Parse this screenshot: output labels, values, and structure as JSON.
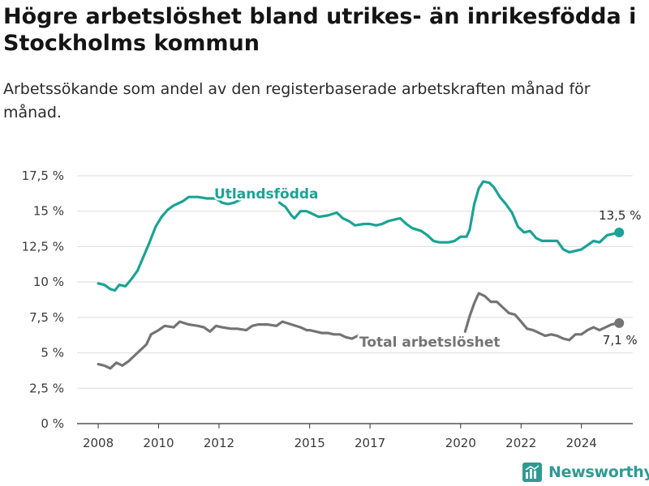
{
  "title": "Högre arbetslöshet bland utrikes- än inrikesfödda i Stockholms kommun",
  "subtitle": "Arbetssökande som andel av den registerbaserade arbetskraften månad för månad.",
  "brand": {
    "name": "Newsworthy",
    "icon": "newsworthy-logo-icon"
  },
  "colors": {
    "utlandsfodda": "#1aa396",
    "total": "#747474",
    "grid": "#dedede",
    "axis": "#333333"
  },
  "chart_data": {
    "type": "line",
    "title": "Högre arbetslöshet bland utrikes- än inrikesfödda i Stockholms kommun",
    "subtitle": "Arbetssökande som andel av den registerbaserade arbetskraften månad för månad.",
    "xlabel": "",
    "ylabel": "",
    "xlim": [
      2007.3,
      2025.7
    ],
    "ylim": [
      0,
      17.5
    ],
    "y_ticks": [
      0,
      2.5,
      5,
      7.5,
      10,
      12.5,
      15,
      17.5
    ],
    "y_tick_labels": [
      "0 %",
      "2,5 %",
      "5 %",
      "7,5 %",
      "10 %",
      "12,5 %",
      "15 %",
      "17,5 %"
    ],
    "x_ticks": [
      2008,
      2010,
      2012,
      2015,
      2017,
      2020,
      2022,
      2024
    ],
    "x_tick_labels": [
      "2008",
      "2010",
      "2012",
      "2015",
      "2017",
      "2020",
      "2022",
      "2024"
    ],
    "grid": true,
    "legend": "direct labels on lines",
    "series": [
      {
        "name": "Utlandsfödda",
        "end_label": "13,5 %",
        "segments": [
          [
            [
              2008.0,
              9.9
            ],
            [
              2008.2,
              9.8
            ],
            [
              2008.4,
              9.5
            ],
            [
              2008.55,
              9.4
            ],
            [
              2008.7,
              9.8
            ],
            [
              2008.9,
              9.7
            ],
            [
              2009.1,
              10.2
            ],
            [
              2009.3,
              10.8
            ],
            [
              2009.5,
              11.8
            ],
            [
              2009.7,
              12.8
            ],
            [
              2009.9,
              13.9
            ],
            [
              2010.1,
              14.6
            ],
            [
              2010.3,
              15.1
            ],
            [
              2010.5,
              15.4
            ],
            [
              2010.8,
              15.7
            ],
            [
              2011.0,
              16.0
            ],
            [
              2011.3,
              16.0
            ],
            [
              2011.6,
              15.9
            ],
            [
              2011.9,
              15.9
            ],
            [
              2012.1,
              15.6
            ],
            [
              2012.3,
              15.5
            ],
            [
              2012.5,
              15.6
            ],
            [
              2012.7,
              15.8
            ]
          ],
          [
            [
              2014.0,
              15.6
            ],
            [
              2014.2,
              15.3
            ],
            [
              2014.4,
              14.7
            ],
            [
              2014.5,
              14.5
            ],
            [
              2014.7,
              15.0
            ],
            [
              2014.9,
              15.0
            ],
            [
              2015.1,
              14.8
            ],
            [
              2015.3,
              14.6
            ],
            [
              2015.6,
              14.7
            ],
            [
              2015.9,
              14.9
            ],
            [
              2016.1,
              14.5
            ],
            [
              2016.3,
              14.3
            ],
            [
              2016.5,
              14.0
            ],
            [
              2016.8,
              14.1
            ],
            [
              2017.0,
              14.1
            ],
            [
              2017.2,
              14.0
            ],
            [
              2017.4,
              14.1
            ],
            [
              2017.6,
              14.3
            ],
            [
              2017.8,
              14.4
            ],
            [
              2018.0,
              14.5
            ],
            [
              2018.2,
              14.1
            ],
            [
              2018.4,
              13.8
            ],
            [
              2018.7,
              13.6
            ],
            [
              2018.9,
              13.3
            ],
            [
              2019.1,
              12.9
            ],
            [
              2019.3,
              12.8
            ],
            [
              2019.6,
              12.8
            ],
            [
              2019.8,
              12.9
            ],
            [
              2020.0,
              13.2
            ],
            [
              2020.2,
              13.2
            ],
            [
              2020.3,
              13.7
            ],
            [
              2020.45,
              15.5
            ],
            [
              2020.6,
              16.6
            ],
            [
              2020.75,
              17.1
            ],
            [
              2020.95,
              17.0
            ],
            [
              2021.1,
              16.7
            ],
            [
              2021.3,
              16.0
            ],
            [
              2021.5,
              15.5
            ],
            [
              2021.7,
              14.9
            ],
            [
              2021.9,
              13.9
            ],
            [
              2022.1,
              13.5
            ],
            [
              2022.3,
              13.6
            ],
            [
              2022.5,
              13.1
            ],
            [
              2022.7,
              12.9
            ],
            [
              2022.9,
              12.9
            ],
            [
              2023.2,
              12.9
            ],
            [
              2023.4,
              12.3
            ],
            [
              2023.6,
              12.1
            ],
            [
              2023.8,
              12.2
            ],
            [
              2024.0,
              12.3
            ],
            [
              2024.2,
              12.6
            ],
            [
              2024.4,
              12.9
            ],
            [
              2024.6,
              12.8
            ],
            [
              2024.85,
              13.3
            ],
            [
              2025.05,
              13.4
            ],
            [
              2025.25,
              13.5
            ]
          ]
        ]
      },
      {
        "name": "Total arbetslöshet",
        "end_label": "7,1 %",
        "segments": [
          [
            [
              2008.0,
              4.2
            ],
            [
              2008.2,
              4.1
            ],
            [
              2008.4,
              3.9
            ],
            [
              2008.6,
              4.3
            ],
            [
              2008.8,
              4.1
            ],
            [
              2009.0,
              4.4
            ],
            [
              2009.2,
              4.8
            ],
            [
              2009.4,
              5.2
            ],
            [
              2009.6,
              5.6
            ],
            [
              2009.75,
              6.3
            ],
            [
              2010.0,
              6.6
            ],
            [
              2010.2,
              6.9
            ],
            [
              2010.5,
              6.8
            ],
            [
              2010.7,
              7.2
            ],
            [
              2011.0,
              7.0
            ],
            [
              2011.3,
              6.9
            ],
            [
              2011.5,
              6.8
            ],
            [
              2011.7,
              6.5
            ],
            [
              2011.9,
              6.9
            ],
            [
              2012.1,
              6.8
            ],
            [
              2012.4,
              6.7
            ],
            [
              2012.6,
              6.7
            ],
            [
              2012.9,
              6.6
            ],
            [
              2013.1,
              6.9
            ],
            [
              2013.3,
              7.0
            ],
            [
              2013.6,
              7.0
            ],
            [
              2013.9,
              6.9
            ],
            [
              2014.1,
              7.2
            ],
            [
              2014.4,
              7.0
            ],
            [
              2014.7,
              6.8
            ],
            [
              2014.9,
              6.6
            ],
            [
              2015.0,
              6.6
            ],
            [
              2015.2,
              6.5
            ],
            [
              2015.4,
              6.4
            ],
            [
              2015.6,
              6.4
            ],
            [
              2015.8,
              6.3
            ],
            [
              2016.0,
              6.3
            ],
            [
              2016.2,
              6.1
            ],
            [
              2016.4,
              6.0
            ],
            [
              2016.6,
              6.2
            ]
          ],
          [
            [
              2020.15,
              6.5
            ],
            [
              2020.3,
              7.6
            ],
            [
              2020.45,
              8.5
            ],
            [
              2020.6,
              9.2
            ],
            [
              2020.8,
              9.0
            ],
            [
              2021.0,
              8.6
            ],
            [
              2021.2,
              8.6
            ],
            [
              2021.4,
              8.2
            ],
            [
              2021.6,
              7.8
            ],
            [
              2021.8,
              7.7
            ],
            [
              2022.0,
              7.2
            ],
            [
              2022.2,
              6.7
            ],
            [
              2022.4,
              6.6
            ],
            [
              2022.6,
              6.4
            ],
            [
              2022.8,
              6.2
            ],
            [
              2023.0,
              6.3
            ],
            [
              2023.2,
              6.2
            ],
            [
              2023.4,
              6.0
            ],
            [
              2023.6,
              5.9
            ],
            [
              2023.8,
              6.3
            ],
            [
              2024.0,
              6.3
            ],
            [
              2024.2,
              6.6
            ],
            [
              2024.4,
              6.8
            ],
            [
              2024.6,
              6.6
            ],
            [
              2024.8,
              6.8
            ],
            [
              2025.0,
              7.0
            ],
            [
              2025.25,
              7.1
            ]
          ]
        ]
      }
    ]
  }
}
